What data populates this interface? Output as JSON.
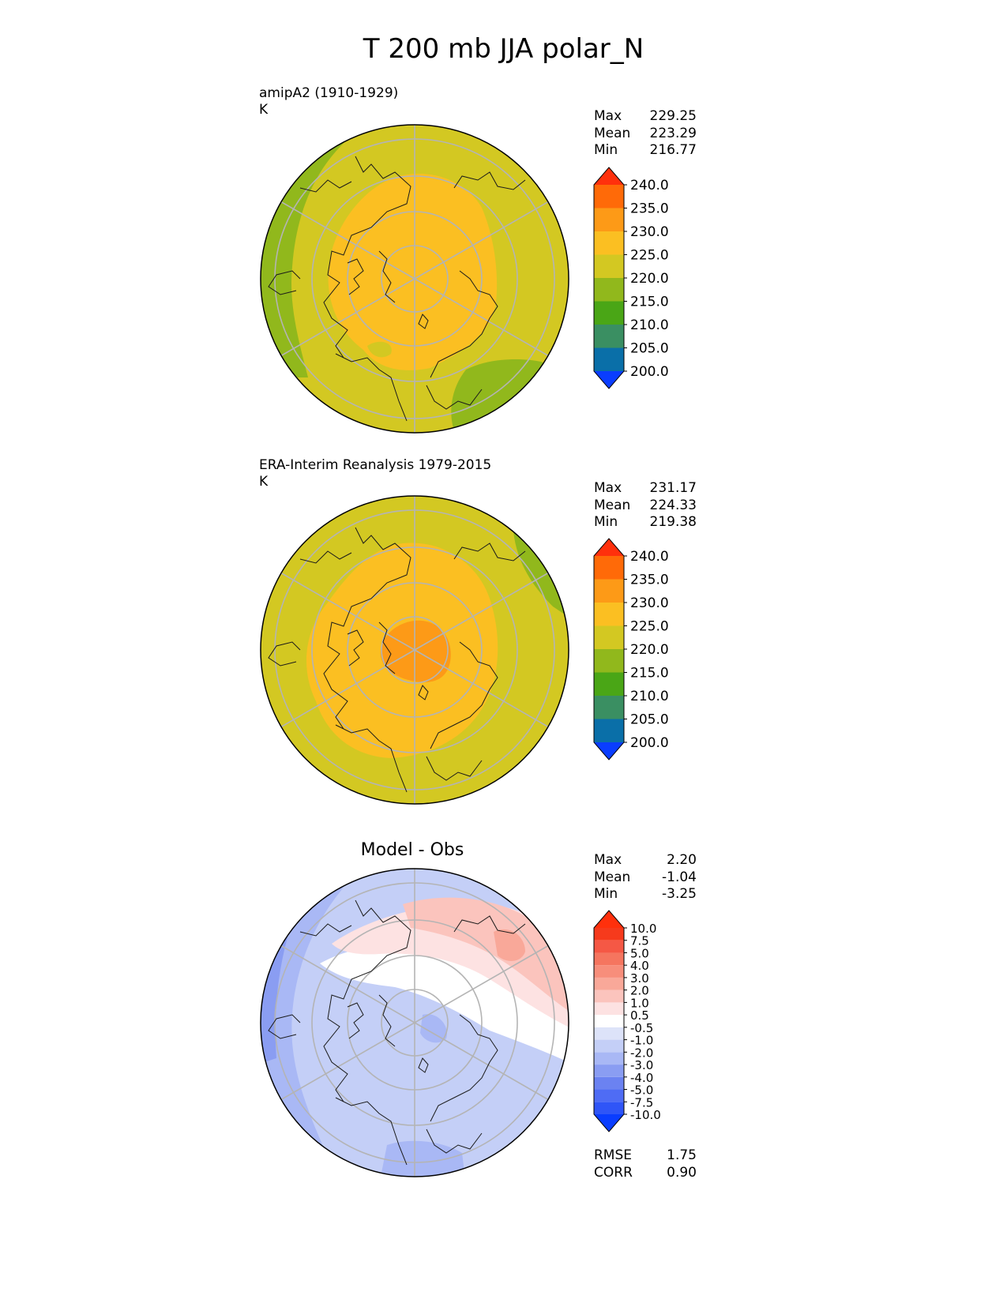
{
  "title": "T 200 mb JJA polar_N",
  "chart_data": [
    {
      "type": "heatmap",
      "projection": "north-polar-stereographic",
      "title": "amipA2 (1910-1929)",
      "units": "K",
      "stats": [
        {
          "label": "Max",
          "value": "229.25"
        },
        {
          "label": "Mean",
          "value": "223.29"
        },
        {
          "label": "Min",
          "value": "216.77"
        }
      ],
      "colorbar": {
        "boundaries": [
          195,
          200,
          205,
          210,
          215,
          220,
          225,
          230,
          235,
          240,
          245
        ],
        "tick_labels": [
          "200.0",
          "205.0",
          "210.0",
          "215.0",
          "220.0",
          "225.0",
          "230.0",
          "235.0",
          "240.0"
        ],
        "colors": [
          "#0a3dff",
          "#0a6fa8",
          "#3a8f62",
          "#4aa616",
          "#91b81c",
          "#d3c822",
          "#fbbf22",
          "#fd9a17",
          "#ff6a08",
          "#ff300c"
        ],
        "extend": "both"
      },
      "field_summary": "Pole region 225-230 K; outer ring 220-225 K; lower-latitude sectors over the western and southeastern edges 215-220 K"
    },
    {
      "type": "heatmap",
      "projection": "north-polar-stereographic",
      "title": "ERA-Interim Reanalysis 1979-2015",
      "units": "K",
      "stats": [
        {
          "label": "Max",
          "value": "231.17"
        },
        {
          "label": "Mean",
          "value": "224.33"
        },
        {
          "label": "Min",
          "value": "219.38"
        }
      ],
      "colorbar": {
        "boundaries": [
          195,
          200,
          205,
          210,
          215,
          220,
          225,
          230,
          235,
          240,
          245
        ],
        "tick_labels": [
          "200.0",
          "205.0",
          "210.0",
          "215.0",
          "220.0",
          "225.0",
          "230.0",
          "235.0",
          "240.0"
        ],
        "colors": [
          "#0a3dff",
          "#0a6fa8",
          "#3a8f62",
          "#4aa616",
          "#91b81c",
          "#d3c822",
          "#fbbf22",
          "#fd9a17",
          "#ff6a08",
          "#ff300c"
        ],
        "extend": "both"
      },
      "field_summary": "Pole core 230-235 K; broad 225-230 K cap; outer 220-225 K; small 215-220 K patch near the upper-right edge"
    },
    {
      "type": "heatmap",
      "projection": "north-polar-stereographic",
      "title": "Model - Obs",
      "units": "",
      "stats": [
        {
          "label": "Max",
          "value": "2.20"
        },
        {
          "label": "Mean",
          "value": "-1.04"
        },
        {
          "label": "Min",
          "value": "-3.25"
        }
      ],
      "colorbar": {
        "boundaries": [
          -15,
          -10,
          -7.5,
          -5,
          -4,
          -3,
          -2,
          -1,
          -0.5,
          0.5,
          1,
          2,
          3,
          4,
          5,
          7.5,
          10,
          15
        ],
        "tick_labels": [
          "-10.0",
          "-7.5",
          "-5.0",
          "-4.0",
          "-3.0",
          "-2.0",
          "-1.0",
          "-0.5",
          "0.5",
          "1.0",
          "2.0",
          "3.0",
          "4.0",
          "5.0",
          "7.5",
          "10.0"
        ],
        "colors": [
          "#0a3dff",
          "#2f55f7",
          "#4f6cf4",
          "#6b82f1",
          "#8a9df2",
          "#a9b8f5",
          "#c4cff7",
          "#dde3f9",
          "#ffffff",
          "#fde2e2",
          "#fbc4bd",
          "#f9a899",
          "#f78e7b",
          "#f5755f",
          "#f55845",
          "#f63a1c",
          "#ff300c"
        ],
        "extend": "both"
      },
      "field_summary": "Mostly negative (-1 to -3) over the pole and lower half; positive (0.5-2) arc across the upper-right sector",
      "rmse": {
        "label": "RMSE",
        "value": "1.75"
      },
      "corr": {
        "label": "CORR",
        "value": "0.90"
      }
    }
  ]
}
